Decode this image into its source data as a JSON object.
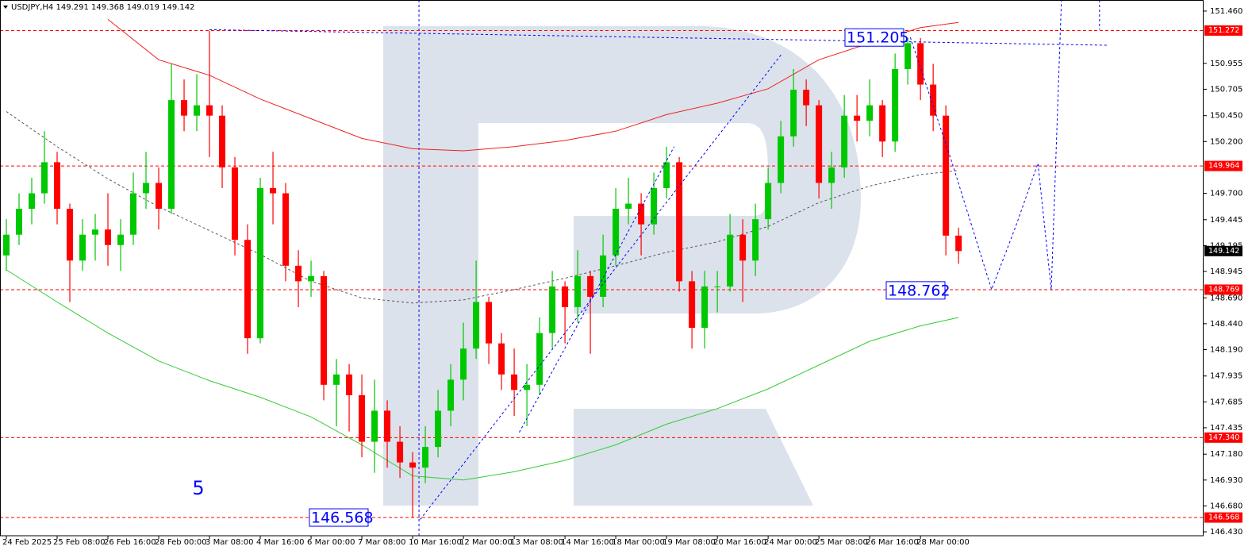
{
  "chart_data": {
    "type": "candlestick",
    "title": "USDJPY,H4",
    "wave_label": "5",
    "up_color": "#00c800",
    "down_color": "#ff0000",
    "xlim": [
      -0.5,
      94.3
    ],
    "ylim": [
      146.392,
      151.567
    ],
    "yticks": [
      {
        "value": 151.46,
        "label": "151.460"
      },
      150.955,
      150.705,
      {
        "value": 150.45,
        "label": "150.450"
      },
      {
        "value": 150.2,
        "label": "150.200"
      },
      {
        "value": 149.7,
        "label": "149.700"
      },
      149.445,
      149.195,
      148.945,
      {
        "value": 148.69,
        "label": "148.690"
      },
      {
        "value": 148.44,
        "label": "148.440"
      },
      {
        "value": 148.19,
        "label": "148.190"
      },
      147.935,
      147.685,
      147.435,
      {
        "value": 147.18,
        "label": "147.180"
      },
      {
        "value": 146.93,
        "label": "146.930"
      },
      {
        "value": 146.68,
        "label": "146.680"
      },
      {
        "value": 146.43,
        "label": "146.430"
      }
    ],
    "categories": [
      "24 Feb 2025",
      null,
      null,
      null,
      "25 Feb 08:00",
      null,
      null,
      null,
      "26 Feb 16:00",
      null,
      null,
      null,
      "28 Feb 00:00",
      null,
      null,
      null,
      "3 Mar 08:00",
      null,
      null,
      null,
      "4 Mar 16:00",
      null,
      null,
      null,
      "6 Mar 00:00",
      null,
      null,
      null,
      "7 Mar 08:00",
      null,
      null,
      null,
      "10 Mar 16:00",
      null,
      null,
      null,
      "12 Mar 00:00",
      null,
      null,
      null,
      "13 Mar 08:00",
      null,
      null,
      null,
      "14 Mar 16:00",
      null,
      null,
      null,
      "18 Mar 00:00",
      null,
      null,
      null,
      "19 Mar 08:00",
      null,
      null,
      null,
      "20 Mar 16:00",
      null,
      null,
      null,
      "24 Mar 00:00",
      null,
      null,
      null,
      "25 Mar 08:00",
      null,
      null,
      null,
      "26 Mar 16:00",
      null,
      null,
      null,
      "28 Mar 00:00",
      null,
      null,
      null
    ],
    "open": [
      149.1,
      149.3,
      149.55,
      149.7,
      150.0,
      149.55,
      149.05,
      149.3,
      149.35,
      149.2,
      149.3,
      149.7,
      149.8,
      149.55,
      150.6,
      150.45,
      150.55,
      150.45,
      149.95,
      149.25,
      148.3,
      149.75,
      149.7,
      149.0,
      148.85,
      148.9,
      147.85,
      147.95,
      147.75,
      147.3,
      147.6,
      147.3,
      147.1,
      147.05,
      147.25,
      147.6,
      147.9,
      148.2,
      148.65,
      148.25,
      147.95,
      147.8,
      147.85,
      148.35,
      148.8,
      148.6,
      148.9,
      148.7,
      149.1,
      149.55,
      149.6,
      149.4,
      149.75,
      150.0,
      148.85,
      148.4,
      148.8,
      148.8,
      149.3,
      149.05,
      149.45,
      149.8,
      150.25,
      150.7,
      150.55,
      149.8,
      149.95,
      150.45,
      150.4,
      150.55,
      150.2,
      150.9,
      151.15,
      150.75,
      150.45,
      149.291
    ],
    "high": [
      149.45,
      149.7,
      149.85,
      150.3,
      150.1,
      149.6,
      149.45,
      149.5,
      149.7,
      149.45,
      149.9,
      150.1,
      149.95,
      150.95,
      150.8,
      150.85,
      151.27,
      150.55,
      150.05,
      149.4,
      149.85,
      150.1,
      149.8,
      149.15,
      149.05,
      148.95,
      148.1,
      148.05,
      147.95,
      147.9,
      147.7,
      147.45,
      147.2,
      147.45,
      147.8,
      148.05,
      148.45,
      149.05,
      148.7,
      148.35,
      148.2,
      148.05,
      148.5,
      148.95,
      148.85,
      149.15,
      148.95,
      149.3,
      149.75,
      149.85,
      149.7,
      149.9,
      150.15,
      150.05,
      148.95,
      148.95,
      148.95,
      149.5,
      149.45,
      149.6,
      149.95,
      150.4,
      150.9,
      150.8,
      150.6,
      150.1,
      150.65,
      150.65,
      150.8,
      150.6,
      151.05,
      151.205,
      151.2,
      150.95,
      150.55,
      149.368
    ],
    "low": [
      148.95,
      149.2,
      149.4,
      149.6,
      149.4,
      148.65,
      148.95,
      149.05,
      149.0,
      148.95,
      149.2,
      149.55,
      149.35,
      149.5,
      150.3,
      150.3,
      150.05,
      149.75,
      149.1,
      148.15,
      148.25,
      149.4,
      148.85,
      148.6,
      148.7,
      147.7,
      147.45,
      147.4,
      147.15,
      147.0,
      147.05,
      146.95,
      146.568,
      146.9,
      147.15,
      147.45,
      147.7,
      148.1,
      148.05,
      147.8,
      147.55,
      147.45,
      147.75,
      148.2,
      148.25,
      148.45,
      148.15,
      148.6,
      149.0,
      149.4,
      149.1,
      149.3,
      149.65,
      148.75,
      148.2,
      148.2,
      148.55,
      148.75,
      148.65,
      148.9,
      149.35,
      149.7,
      150.15,
      150.35,
      149.65,
      149.55,
      149.85,
      150.2,
      150.25,
      150.05,
      150.1,
      150.75,
      150.6,
      150.3,
      149.1,
      149.019
    ],
    "close": [
      149.3,
      149.55,
      149.7,
      150.0,
      149.55,
      149.05,
      149.3,
      149.35,
      149.2,
      149.3,
      149.7,
      149.8,
      149.55,
      150.6,
      150.45,
      150.55,
      150.45,
      149.95,
      149.25,
      148.3,
      149.75,
      149.7,
      149.0,
      148.85,
      148.9,
      147.85,
      147.95,
      147.75,
      147.3,
      147.6,
      147.3,
      147.1,
      147.05,
      147.25,
      147.6,
      147.9,
      148.2,
      148.65,
      148.25,
      147.95,
      147.8,
      147.85,
      148.35,
      148.8,
      148.6,
      148.9,
      148.7,
      149.1,
      149.55,
      149.6,
      149.4,
      149.75,
      150.0,
      148.85,
      148.4,
      148.8,
      148.8,
      149.3,
      149.05,
      149.45,
      149.8,
      150.25,
      150.7,
      150.55,
      149.8,
      149.95,
      150.45,
      150.4,
      150.55,
      150.2,
      150.9,
      151.15,
      150.75,
      150.45,
      149.291,
      149.142
    ],
    "indicators": [
      {
        "color": "#ee2222",
        "dash": false,
        "x": [
          0,
          4,
          8,
          12,
          16,
          20,
          24,
          28,
          32,
          36,
          40,
          44,
          48,
          52,
          56,
          60,
          64,
          68,
          72,
          75
        ],
        "values": [
          null,
          null,
          151.38,
          150.99,
          150.84,
          150.61,
          150.42,
          150.23,
          150.13,
          150.11,
          150.15,
          150.21,
          150.3,
          150.46,
          150.57,
          150.71,
          150.99,
          151.15,
          151.3,
          151.35
        ]
      },
      {
        "color": "#33cc33",
        "dash": false,
        "x": [
          0,
          4,
          8,
          12,
          16,
          20,
          24,
          28,
          32,
          36,
          40,
          44,
          48,
          52,
          56,
          60,
          64,
          68,
          72,
          75
        ],
        "values": [
          148.96,
          148.65,
          148.35,
          148.08,
          147.89,
          147.73,
          147.54,
          147.27,
          146.97,
          146.93,
          147.01,
          147.12,
          147.27,
          147.47,
          147.62,
          147.81,
          148.04,
          148.27,
          148.42,
          148.5
        ]
      },
      {
        "color": "#555555",
        "dash": true,
        "x": [
          0,
          4,
          8,
          12,
          16,
          20,
          24,
          28,
          32,
          36,
          40,
          44,
          48,
          52,
          56,
          60,
          64,
          68,
          72,
          75
        ],
        "values": [
          150.49,
          150.15,
          149.84,
          149.57,
          149.34,
          149.11,
          148.85,
          148.69,
          148.64,
          148.67,
          148.77,
          148.88,
          149.0,
          149.13,
          149.23,
          149.38,
          149.61,
          149.77,
          149.88,
          149.92
        ]
      }
    ],
    "forecast_lines": [
      {
        "color": "#0000ff",
        "x": [
          71.2,
          74.5,
          77.6,
          79.5,
          81.25,
          82.3,
          83.1
        ],
        "values": [
          151.205,
          149.99,
          148.77,
          149.38,
          149.99,
          148.77,
          151.567
        ]
      },
      {
        "color": "#0000ff",
        "x": [
          32.6,
          61.1
        ],
        "values": [
          146.55,
          151.05
        ]
      },
      {
        "color": "#0000ff",
        "x": [
          40.4,
          52.6
        ],
        "values": [
          147.39,
          150.15
        ]
      },
      {
        "color": "#0000ff",
        "x": [
          16,
          86.7
        ],
        "values": [
          151.28,
          151.13
        ]
      },
      {
        "color": "#0000ff",
        "x": [
          86.1,
          86.1
        ],
        "values": [
          151.567,
          151.28
        ]
      }
    ],
    "vlines": [
      32.5
    ],
    "levels": [
      {
        "value": 151.272
      },
      {
        "value": 149.964
      },
      {
        "value": 148.769
      },
      {
        "value": 147.34,
        "label": "147.340"
      },
      {
        "value": 146.568
      }
    ],
    "level_color": "#ff0000",
    "annotations": [
      151.205,
      148.762,
      146.568
    ]
  }
}
